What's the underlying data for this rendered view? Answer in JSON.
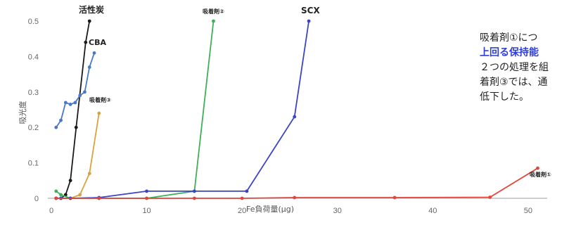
{
  "chart_data": {
    "type": "line",
    "title": "",
    "xlabel": "Fe負荷量(μg)",
    "ylabel": "吸光度",
    "xlim": [
      0,
      52
    ],
    "ylim": [
      0,
      0.5
    ],
    "x_ticks": [
      "0",
      "10",
      "20",
      "30",
      "40",
      "50"
    ],
    "y_ticks": [
      "0",
      "0.1",
      "0.2",
      "0.3",
      "0.4",
      "0.5"
    ],
    "grid": false,
    "series": [
      {
        "name": "活性炭",
        "color": "#1a1a1a",
        "points": [
          [
            0.5,
            0
          ],
          [
            1,
            0
          ],
          [
            1.5,
            0.01
          ],
          [
            2,
            0.05
          ],
          [
            2.6,
            0.2
          ],
          [
            3.6,
            0.44
          ],
          [
            4,
            0.5
          ]
        ]
      },
      {
        "name": "CBA",
        "color": "#4a78c8",
        "points": [
          [
            0.5,
            0.2
          ],
          [
            1,
            0.22
          ],
          [
            1.5,
            0.27
          ],
          [
            2,
            0.265
          ],
          [
            2.5,
            0.27
          ],
          [
            3,
            0.29
          ],
          [
            3.5,
            0.3
          ],
          [
            4,
            0.37
          ],
          [
            4.5,
            0.41
          ]
        ]
      },
      {
        "name": "吸着剤③",
        "color": "#d9a23c",
        "points": [
          [
            0.5,
            0
          ],
          [
            1,
            0
          ],
          [
            2,
            0
          ],
          [
            3,
            0.01
          ],
          [
            4,
            0.07
          ],
          [
            5,
            0.24
          ]
        ]
      },
      {
        "name": "吸着剤②",
        "color": "#3fb05a",
        "points": [
          [
            0.5,
            0.02
          ],
          [
            1,
            0.01
          ],
          [
            2,
            0
          ],
          [
            5,
            0
          ],
          [
            10,
            0
          ],
          [
            15,
            0.02
          ],
          [
            17,
            0.5
          ]
        ]
      },
      {
        "name": "SCX",
        "color": "#3b44c8",
        "points": [
          [
            0.5,
            0
          ],
          [
            1,
            0
          ],
          [
            2,
            0
          ],
          [
            5,
            0.002
          ],
          [
            10,
            0.02
          ],
          [
            15,
            0.02
          ],
          [
            20.5,
            0.02
          ],
          [
            25.5,
            0.23
          ],
          [
            27,
            0.5
          ]
        ]
      },
      {
        "name": "吸着剤①",
        "color": "#e0463c",
        "points": [
          [
            0.5,
            0
          ],
          [
            5,
            0
          ],
          [
            10,
            0
          ],
          [
            15,
            0
          ],
          [
            20,
            0
          ],
          [
            25.5,
            0.002
          ],
          [
            36,
            0.002
          ],
          [
            46,
            0.003
          ],
          [
            51,
            0.085
          ]
        ]
      }
    ]
  },
  "note": {
    "line1": "吸着剤①につ",
    "line2": "上回る保持能",
    "line3": "２つの処理を組",
    "line4": "着剤③では、通",
    "line5": "低下した。"
  }
}
